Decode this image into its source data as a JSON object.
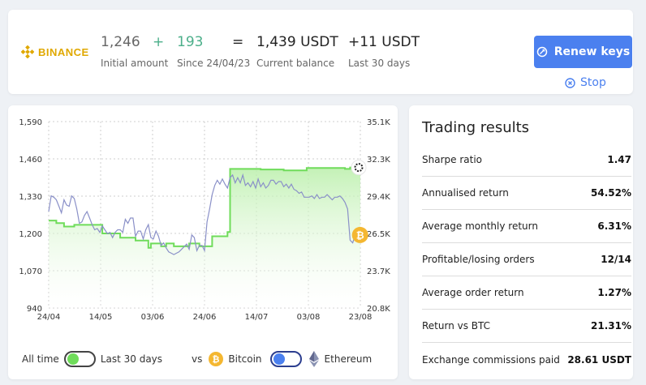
{
  "header": {
    "brand": "BINANCE",
    "initial_amount": {
      "value": "1,246",
      "label": "Initial amount"
    },
    "plus": "+",
    "gain": {
      "value": "193",
      "label": "Since 24/04/23"
    },
    "equals": "=",
    "current_balance": {
      "value": "1,439 USDT",
      "label": "Current balance"
    },
    "last30": {
      "value": "+11 USDT",
      "label": "Last 30 days"
    },
    "renew_label": "Renew keys",
    "stop_label": "Stop"
  },
  "controls": {
    "all_time": "All time",
    "last_30_days": "Last 30 days",
    "vs": "vs",
    "bitcoin": "Bitcoin",
    "ethereum": "Ethereum"
  },
  "colors": {
    "accent": "#4b80ef",
    "balance_line": "#6fdc5a",
    "btc_line": "#8a90c8",
    "binance": "#e0a800",
    "bitcoin": "#f4b731"
  },
  "chart_data": {
    "type": "line",
    "x_ticks": [
      "24/04",
      "14/05",
      "03/06",
      "24/06",
      "14/07",
      "03/08",
      "23/08"
    ],
    "y_left": {
      "ticks": [
        "1,590",
        "1,460",
        "1,330",
        "1,200",
        "1,070",
        "940"
      ],
      "range": [
        940,
        1590
      ]
    },
    "y_right": {
      "ticks": [
        "35.1K",
        "32.3K",
        "29.4K",
        "26.5K",
        "23.7K",
        "20.8K"
      ],
      "range": [
        20.8,
        35.1
      ]
    },
    "x_range": [
      0,
      122
    ],
    "grid": true,
    "series": [
      {
        "axis": "left",
        "area": true,
        "x": [
          0,
          3,
          3,
          6,
          6,
          10,
          10,
          21,
          21,
          28,
          28,
          34,
          34,
          39,
          39,
          40,
          40,
          44,
          44,
          46,
          46,
          49,
          49,
          55,
          55,
          59,
          59,
          64,
          64,
          70,
          70,
          71,
          71,
          83,
          83,
          92,
          92,
          101,
          101,
          116,
          116,
          118,
          118,
          120,
          122
        ],
        "y": [
          1245,
          1245,
          1236,
          1236,
          1224,
          1224,
          1230,
          1230,
          1200,
          1200,
          1185,
          1185,
          1175,
          1175,
          1150,
          1150,
          1165,
          1165,
          1155,
          1155,
          1165,
          1165,
          1155,
          1155,
          1165,
          1165,
          1155,
          1155,
          1190,
          1190,
          1205,
          1205,
          1425,
          1425,
          1423,
          1423,
          1420,
          1420,
          1428,
          1428,
          1425,
          1425,
          1430,
          1430,
          1430
        ]
      },
      {
        "axis": "right",
        "area": false,
        "x": [
          0,
          1,
          2,
          3,
          4,
          5,
          6,
          7,
          8,
          9,
          10,
          11,
          12,
          13,
          14,
          15,
          16,
          17,
          18,
          19,
          20,
          21,
          22,
          23,
          24,
          25,
          26,
          27,
          28,
          29,
          30,
          31,
          32,
          33,
          34,
          35,
          36,
          37,
          38,
          39,
          40,
          41,
          42,
          43,
          44,
          45,
          46,
          47,
          48,
          49,
          50,
          51,
          52,
          53,
          54,
          55,
          56,
          57,
          58,
          59,
          60,
          61,
          62,
          63,
          64,
          65,
          66,
          67,
          68,
          69,
          70,
          71,
          72,
          73,
          74,
          75,
          76,
          77,
          78,
          79,
          80,
          81,
          82,
          83,
          84,
          85,
          86,
          87,
          88,
          89,
          90,
          91,
          92,
          93,
          94,
          95,
          96,
          97,
          98,
          99,
          100,
          101,
          102,
          103,
          104,
          105,
          106,
          107,
          108,
          109,
          110,
          111,
          112,
          113,
          114,
          115,
          116,
          117,
          118,
          119,
          120
        ],
        "y": [
          28.2,
          29.4,
          29.3,
          29.1,
          28.6,
          28.1,
          29.1,
          28.7,
          28.6,
          29.4,
          29.2,
          28.4,
          27.3,
          27.4,
          27.9,
          28.2,
          27.7,
          27.2,
          26.8,
          26.9,
          26.6,
          27.1,
          26.8,
          26.5,
          26.6,
          26.2,
          26.6,
          26.8,
          26.8,
          26.6,
          27.6,
          27.3,
          27.7,
          27.7,
          26.3,
          26.7,
          26.7,
          26.1,
          26.8,
          27.2,
          26.2,
          26.1,
          26.7,
          26.3,
          25.6,
          25.8,
          25.4,
          25.1,
          25.0,
          24.9,
          25.0,
          25.1,
          25.3,
          25.5,
          25.7,
          25.3,
          26.4,
          26.2,
          25.2,
          25.6,
          25.6,
          25.2,
          27.4,
          28.4,
          29.5,
          30.2,
          30.6,
          30.3,
          30.7,
          30.3,
          30.0,
          30.8,
          31.0,
          30.4,
          30.8,
          30.4,
          31.0,
          30.2,
          30.4,
          30.1,
          30.5,
          30.0,
          30.7,
          30.1,
          30.4,
          30.0,
          30.2,
          30.6,
          30.6,
          30.3,
          30.5,
          30.5,
          30.1,
          30.3,
          30.0,
          30.3,
          29.9,
          29.8,
          29.6,
          29.7,
          29.3,
          29.3,
          29.3,
          29.4,
          29.2,
          29.5,
          29.2,
          29.3,
          29.3,
          29.5,
          29.3,
          29.1,
          29.3,
          29.3,
          29.4,
          29.2,
          28.9,
          28.4,
          26.0,
          25.8,
          26.4
        ]
      }
    ]
  },
  "results": {
    "title": "Trading results",
    "rows": [
      {
        "label": "Sharpe ratio",
        "value": "1.47"
      },
      {
        "label": "Annualised return",
        "value": "54.52%"
      },
      {
        "label": "Average monthly return",
        "value": "6.31%"
      },
      {
        "label": "Profitable/losing orders",
        "value": "12/14"
      },
      {
        "label": "Average order return",
        "value": "1.27%"
      },
      {
        "label": "Return vs BTC",
        "value": "21.31%"
      },
      {
        "label": "Exchange commissions paid",
        "value": "28.61 USDT"
      }
    ]
  }
}
